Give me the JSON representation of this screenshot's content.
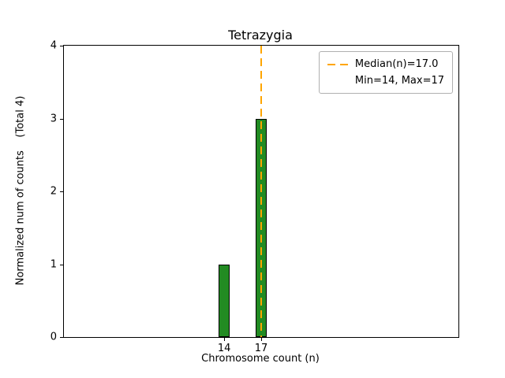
{
  "chart_data": {
    "type": "bar",
    "title": "Tetrazygia",
    "xlabel": "Chromosome count (n)",
    "ylabel": "Normalized num of counts    (Total 4)",
    "categories": [
      14,
      17
    ],
    "values": [
      1,
      3
    ],
    "xticks": [
      14,
      17
    ],
    "yticks": [
      0,
      1,
      2,
      3,
      4
    ],
    "xlim": [
      1,
      33
    ],
    "ylim": [
      0,
      4
    ],
    "bar_width": 0.9,
    "bar_color": "#228B22",
    "bar_edge_color": "#000000",
    "grid": "off",
    "legend_position": "top-right",
    "median_line": {
      "x": 17,
      "color": "#FFA500",
      "style": "dashed"
    },
    "legend": [
      {
        "label": "Median(n)=17.0",
        "swatch": "dashed-line",
        "color": "#FFA500"
      },
      {
        "label": "Min=14, Max=17",
        "swatch": "none"
      }
    ],
    "stats": {
      "median": 17.0,
      "min": 14,
      "max": 17,
      "total": 4
    }
  }
}
